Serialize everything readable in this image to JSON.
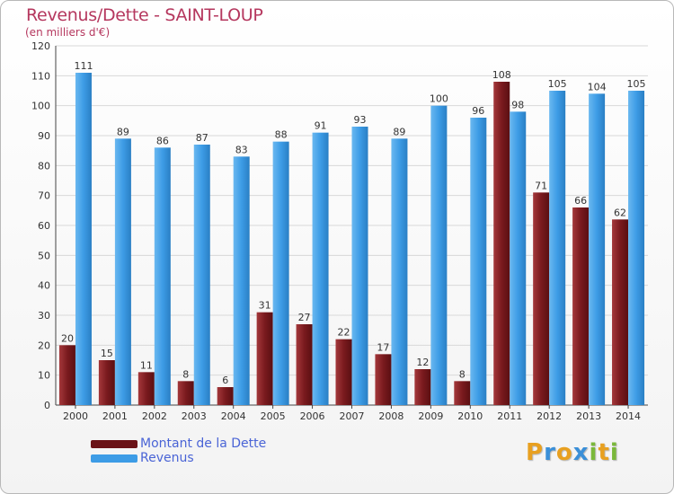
{
  "chart_data": {
    "type": "bar",
    "title": "Revenus/Dette - SAINT-LOUP",
    "subtitle": "(en milliers d'€)",
    "categories": [
      "2000",
      "2001",
      "2002",
      "2003",
      "2004",
      "2005",
      "2006",
      "2007",
      "2008",
      "2009",
      "2010",
      "2011",
      "2012",
      "2013",
      "2014"
    ],
    "series": [
      {
        "name": "Montant de la Dette",
        "color": "#7a1a1e",
        "values": [
          20,
          15,
          11,
          8,
          6,
          31,
          27,
          22,
          17,
          12,
          8,
          108,
          71,
          66,
          62
        ]
      },
      {
        "name": "Revenus",
        "color": "#3d9ce6",
        "values": [
          111,
          89,
          86,
          87,
          83,
          88,
          91,
          93,
          89,
          100,
          96,
          98,
          105,
          104,
          105
        ]
      }
    ],
    "ylim": [
      0,
      120
    ],
    "yticks": [
      0,
      10,
      20,
      30,
      40,
      50,
      60,
      70,
      80,
      90,
      100,
      110,
      120
    ],
    "grid": true,
    "legend_position": "bottom-left"
  },
  "logo": {
    "letters": [
      "P",
      "r",
      "o",
      "x",
      "i",
      "t",
      "i"
    ],
    "colors": [
      "#e8a020",
      "#3a8fd8",
      "#e8a020",
      "#3a8fd8",
      "#7ab83a",
      "#e8a020",
      "#7ab83a"
    ]
  }
}
